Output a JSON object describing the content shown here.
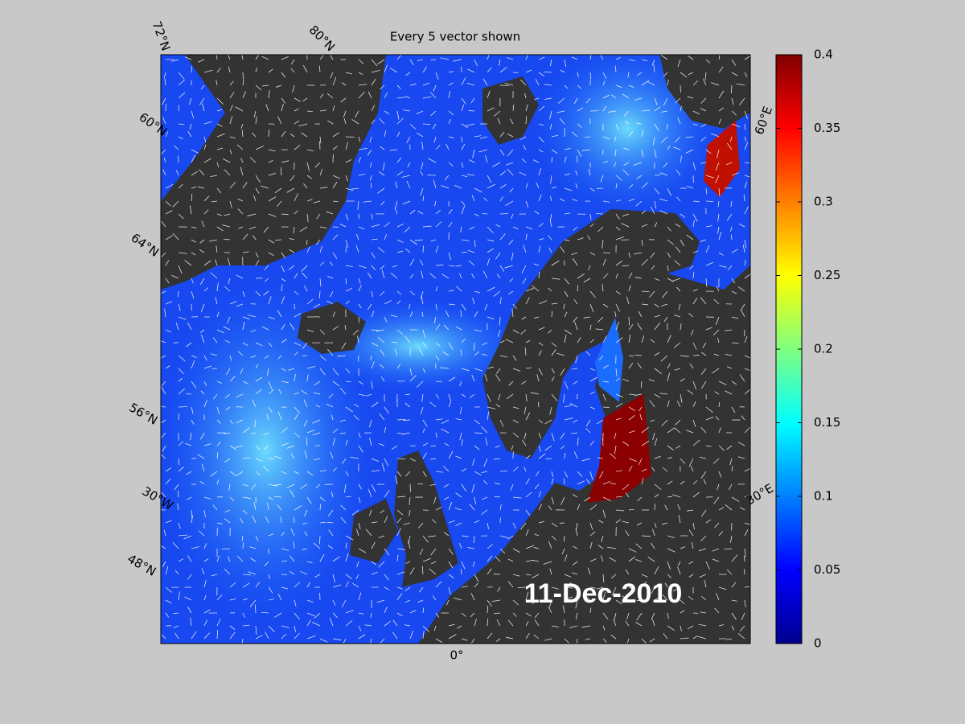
{
  "map": {
    "title": "Every 5 vector shown",
    "date": "11-Dec-2010",
    "grid_labels": [
      "72°N",
      "80°N",
      "60°N",
      "64°N",
      "56°N",
      "30°W",
      "48°N",
      "0°",
      "60°E",
      "30°E"
    ],
    "colorbar": {
      "clim": [
        0,
        0.4
      ],
      "ticks": [
        0,
        0.05,
        0.1,
        0.15,
        0.2,
        0.25,
        0.3,
        0.35,
        0.4
      ]
    }
  }
}
